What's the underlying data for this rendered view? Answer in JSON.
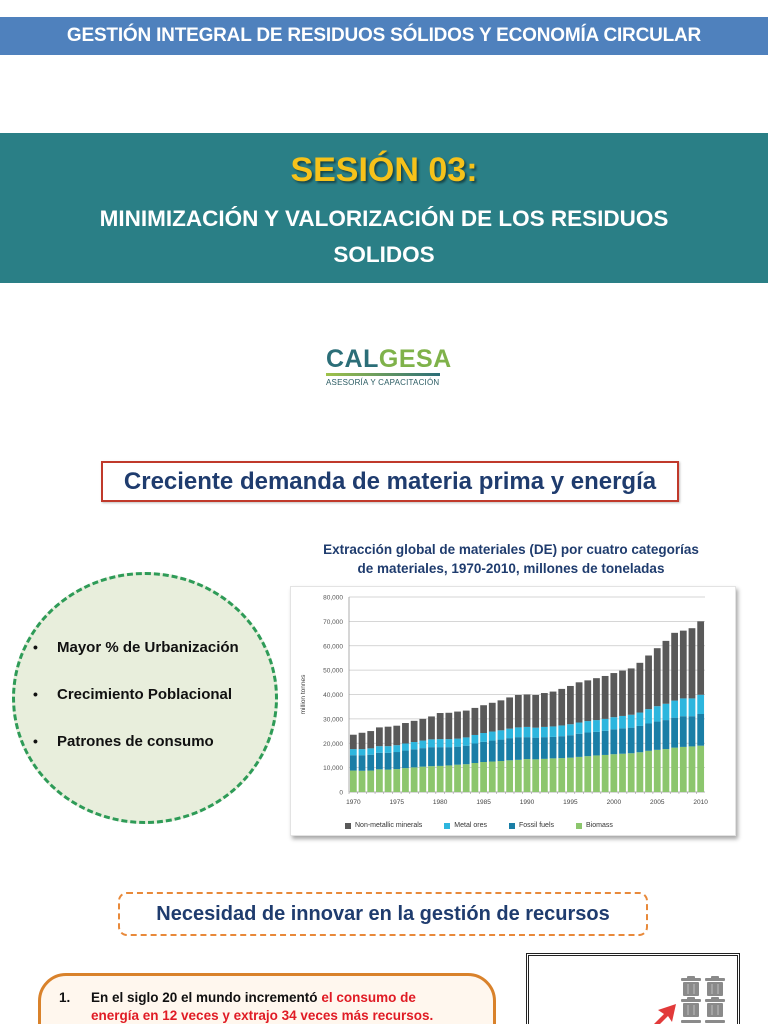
{
  "header": {
    "course_title": "GESTIÓN INTEGRAL DE RESIDUOS SÓLIDOS Y ECONOMÍA CIRCULAR"
  },
  "session": {
    "label": "SESIÓN 03:",
    "subtitle_line1": "MINIMIZACIÓN Y VALORIZACIÓN DE LOS RESIDUOS",
    "subtitle_line2": "SOLIDOS"
  },
  "logo": {
    "word_part1": "CAL",
    "word_part2": "GESA",
    "tagline": "ASESORÍA Y CAPACITACIÓN"
  },
  "section1": {
    "heading": "Creciente demanda de materia prima y energía",
    "drivers": [
      "Mayor % de Urbanización",
      "Crecimiento Poblacional",
      "Patrones de consumo"
    ],
    "bullet_glyph": "•"
  },
  "chart_title": {
    "line1": "Extracción global de materiales (DE) por cuatro categorías",
    "line2": "de materiales, 1970-2010, millones de toneladas"
  },
  "chart_data": {
    "type": "bar",
    "stacked": true,
    "title": "Extracción global de materiales (DE) por cuatro categorías de materiales, 1970-2010, millones de toneladas",
    "xlabel": "",
    "ylabel": "million tonnes",
    "ylim": [
      0,
      80000
    ],
    "yticks": [
      "0",
      "10,000",
      "20,000",
      "30,000",
      "40,000",
      "50,000",
      "60,000",
      "70,000",
      "80,000"
    ],
    "xticks": [
      "1970",
      "1975",
      "1980",
      "1985",
      "1990",
      "1995",
      "2000",
      "2005",
      "2010"
    ],
    "grid": true,
    "legend_position": "bottom",
    "categories": [
      1970,
      1971,
      1972,
      1973,
      1974,
      1975,
      1976,
      1977,
      1978,
      1979,
      1980,
      1981,
      1982,
      1983,
      1984,
      1985,
      1986,
      1987,
      1988,
      1989,
      1990,
      1991,
      1992,
      1993,
      1994,
      1995,
      1996,
      1997,
      1998,
      1999,
      2000,
      2001,
      2002,
      2003,
      2004,
      2005,
      2006,
      2007,
      2008,
      2009,
      2010
    ],
    "series": [
      {
        "name": "Biomass",
        "color": "#8cc66d",
        "values": [
          8800,
          8700,
          8800,
          9300,
          9200,
          9400,
          9800,
          10100,
          10400,
          10600,
          10700,
          10900,
          11200,
          11400,
          11900,
          12300,
          12500,
          12700,
          13000,
          13200,
          13500,
          13400,
          13600,
          13800,
          13900,
          14100,
          14400,
          14700,
          15000,
          15200,
          15500,
          15700,
          15900,
          16300,
          16900,
          17300,
          17600,
          18200,
          18500,
          18700,
          19000
        ]
      },
      {
        "name": "Fossil fuels",
        "color": "#1a7ea6",
        "values": [
          6300,
          6400,
          6500,
          6800,
          6900,
          7000,
          7200,
          7400,
          7600,
          7800,
          7700,
          7500,
          7400,
          7600,
          8000,
          8300,
          8600,
          8800,
          9100,
          9300,
          9000,
          8900,
          8900,
          8800,
          9000,
          9200,
          9500,
          9700,
          9700,
          9900,
          10200,
          10400,
          10500,
          10800,
          11200,
          11600,
          11900,
          12300,
          12600,
          12400,
          13000
        ]
      },
      {
        "name": "Metal ores",
        "color": "#2db6de",
        "values": [
          2500,
          2500,
          2600,
          2700,
          2700,
          2800,
          2900,
          3000,
          3100,
          3200,
          3300,
          3300,
          3300,
          3400,
          3500,
          3600,
          3700,
          3800,
          3900,
          4000,
          4200,
          4100,
          4200,
          4300,
          4400,
          4500,
          4600,
          4700,
          4800,
          4900,
          5000,
          5100,
          5300,
          5500,
          5900,
          6300,
          6700,
          7000,
          7300,
          7300,
          7900
        ]
      },
      {
        "name": "Non-metallic minerals",
        "color": "#595959",
        "values": [
          5900,
          6700,
          7100,
          7700,
          8000,
          8000,
          8400,
          8700,
          8900,
          9400,
          10700,
          10800,
          11100,
          11000,
          11100,
          11400,
          11800,
          12300,
          12800,
          13300,
          13300,
          13400,
          13900,
          14300,
          15000,
          15700,
          16500,
          16700,
          17200,
          17600,
          18100,
          18600,
          19000,
          20400,
          22000,
          23800,
          25800,
          27800,
          27800,
          28800,
          30100
        ]
      }
    ],
    "totals_approx": [
      23500,
      24300,
      25000,
      26500,
      26800,
      27200,
      28300,
      29200,
      30000,
      31000,
      32400,
      32500,
      33000,
      33400,
      34500,
      35600,
      36600,
      37600,
      38800,
      39800,
      40000,
      39800,
      40600,
      41200,
      42300,
      43500,
      45000,
      45800,
      46700,
      47600,
      48800,
      49800,
      50700,
      53000,
      56000,
      59000,
      62000,
      65300,
      66200,
      67200,
      70000
    ]
  },
  "legend": [
    {
      "label": "Non-metallic minerals",
      "color": "#595959"
    },
    {
      "label": "Metal ores",
      "color": "#2db6de"
    },
    {
      "label": "Fossil fuels",
      "color": "#1a7ea6"
    },
    {
      "label": "Biomass",
      "color": "#8cc66d"
    }
  ],
  "section2": {
    "heading": "Necesidad de innovar en la gestión de recursos"
  },
  "callout": {
    "number": "1.",
    "text_plain": "En el siglo 20 el mundo incrementó ",
    "text_red_line1": "el consumo de",
    "text_red_line2": "energía en 12 veces y extrajo 34 veces más recursos."
  },
  "icons": {
    "illustration": [
      "trash-can-icon",
      "red-arrow-up-right-icon"
    ]
  }
}
